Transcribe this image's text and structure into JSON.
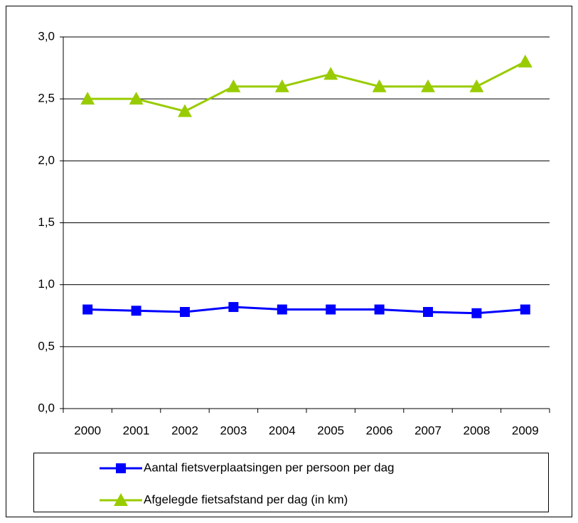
{
  "chart_data": {
    "type": "line",
    "categories": [
      "2000",
      "2001",
      "2002",
      "2003",
      "2004",
      "2005",
      "2006",
      "2007",
      "2008",
      "2009"
    ],
    "series": [
      {
        "name": "Aantal fietsverplaatsingen per persoon per dag",
        "color": "#0000ff",
        "marker": "square",
        "values": [
          0.8,
          0.79,
          0.78,
          0.82,
          0.8,
          0.8,
          0.8,
          0.78,
          0.77,
          0.8
        ]
      },
      {
        "name": "Afgelegde fietsafstand per dag (in km)",
        "color": "#99cc00",
        "marker": "triangle",
        "values": [
          2.5,
          2.5,
          2.4,
          2.6,
          2.6,
          2.7,
          2.6,
          2.6,
          2.6,
          2.8
        ]
      }
    ],
    "ylim": [
      0,
      3
    ],
    "yticks": [
      {
        "value": 0,
        "label": "0,0"
      },
      {
        "value": 0.5,
        "label": "0,5"
      },
      {
        "value": 1,
        "label": "1,0"
      },
      {
        "value": 1.5,
        "label": "1,5"
      },
      {
        "value": 2,
        "label": "2,0"
      },
      {
        "value": 2.5,
        "label": "2,5"
      },
      {
        "value": 3,
        "label": "3,0"
      }
    ],
    "grid": true,
    "legend": "bottom"
  }
}
